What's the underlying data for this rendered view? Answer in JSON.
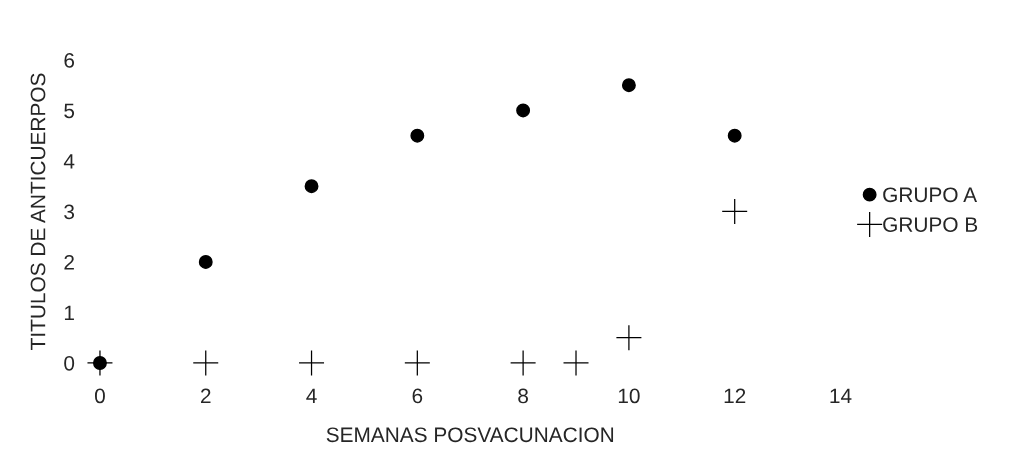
{
  "chart_data": {
    "type": "scatter",
    "xlabel": "SEMANAS POSVACUNACION",
    "ylabel": "TITULOS DE ANTICUERPOS",
    "xlim": [
      0,
      14
    ],
    "ylim": [
      0,
      6
    ],
    "xticks": [
      0,
      2,
      4,
      6,
      8,
      10,
      12,
      14
    ],
    "yticks": [
      0,
      1,
      2,
      3,
      4,
      5,
      6
    ],
    "grid": false,
    "legend": "right",
    "series": [
      {
        "name": "GRUPO A",
        "color": "#000000",
        "marker": "circle",
        "x": [
          0,
          2,
          4,
          6,
          8,
          10,
          12
        ],
        "values": [
          0,
          2,
          3.5,
          4.5,
          5,
          5.5,
          4.5
        ]
      },
      {
        "name": "GRUPO B",
        "color": "#000000",
        "marker": "cross",
        "x": [
          0,
          2,
          4,
          6,
          8,
          9,
          10,
          12
        ],
        "values": [
          0,
          0,
          0,
          0,
          0,
          0,
          0.5,
          3
        ]
      }
    ]
  }
}
